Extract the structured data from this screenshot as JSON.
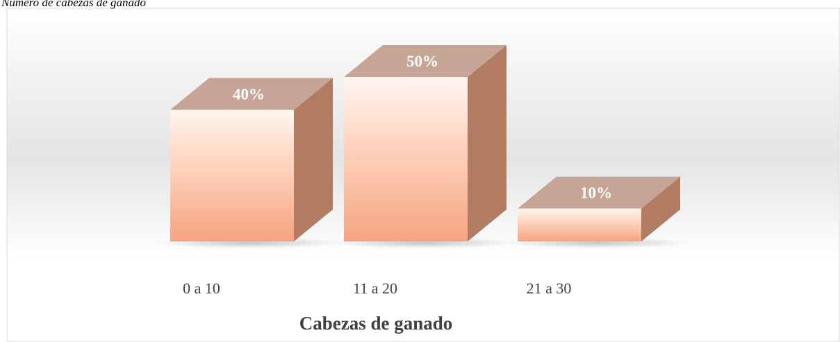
{
  "chart_data": {
    "type": "bar3d",
    "title": "Número de cabezas de ganado",
    "x_label": "Cabezas de ganado",
    "categories": [
      "0 a 10",
      "11 a 20",
      "21 a 30"
    ],
    "values": [
      40,
      50,
      10
    ],
    "value_labels": [
      "40%",
      "50%",
      "10%"
    ],
    "color": "#f6a47f"
  }
}
